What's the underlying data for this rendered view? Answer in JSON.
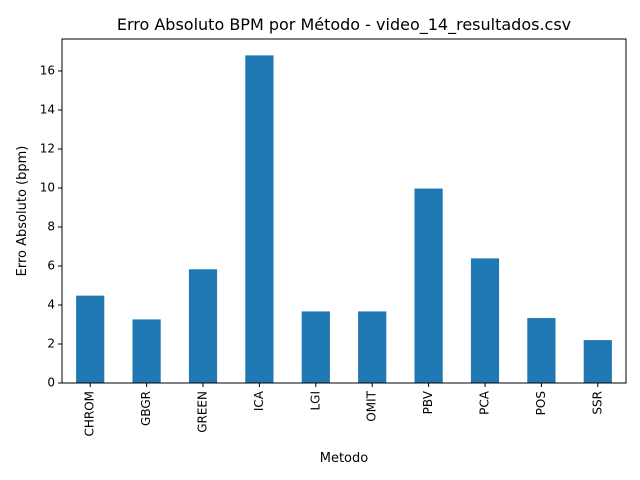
{
  "chart_data": {
    "type": "bar",
    "title": "Erro Absoluto BPM por Método - video_14_resultados.csv",
    "xlabel": "Metodo",
    "ylabel": "Erro Absoluto (bpm)",
    "categories": [
      "CHROM",
      "GBGR",
      "GREEN",
      "ICA",
      "LGI",
      "OMIT",
      "PBV",
      "PCA",
      "POS",
      "SSR"
    ],
    "values": [
      4.48,
      3.26,
      5.83,
      16.8,
      3.67,
      3.67,
      9.97,
      6.39,
      3.33,
      2.2
    ],
    "ylim": [
      0,
      17.64
    ],
    "yticks": [
      "0",
      "2",
      "4",
      "6",
      "8",
      "10",
      "12",
      "14",
      "16"
    ],
    "bar_color": "#1f77b4",
    "grid": false,
    "legend": false
  }
}
